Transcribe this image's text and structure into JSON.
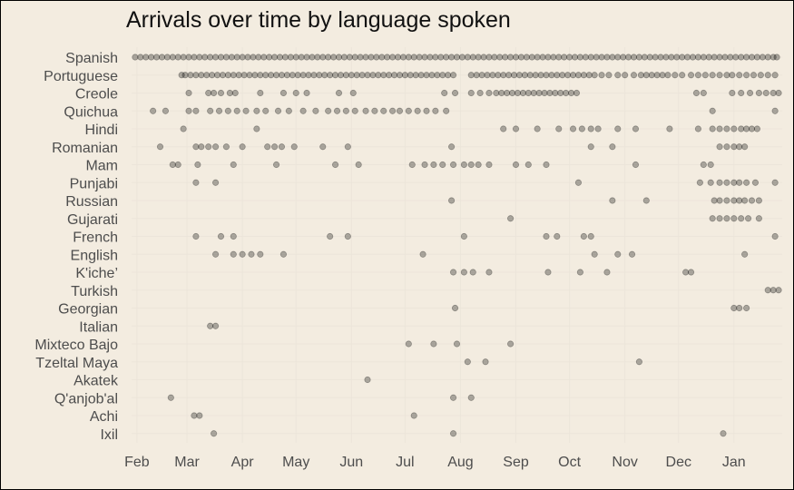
{
  "chart_data": {
    "type": "scatter",
    "title": "Arrivals over time by language spoken",
    "xlabel": "",
    "ylabel": "",
    "x_axis_type": "date",
    "xlim": [
      "2022-01-29",
      "2023-01-28"
    ],
    "x_ticks": [
      {
        "label": "Feb",
        "date": "2022-02-01"
      },
      {
        "label": "Mar",
        "date": "2022-03-01"
      },
      {
        "label": "Apr",
        "date": "2022-04-01"
      },
      {
        "label": "May",
        "date": "2022-05-01"
      },
      {
        "label": "Jun",
        "date": "2022-06-01"
      },
      {
        "label": "Jul",
        "date": "2022-07-01"
      },
      {
        "label": "Aug",
        "date": "2022-08-01"
      },
      {
        "label": "Sep",
        "date": "2022-09-01"
      },
      {
        "label": "Oct",
        "date": "2022-10-01"
      },
      {
        "label": "Nov",
        "date": "2022-11-01"
      },
      {
        "label": "Dec",
        "date": "2022-12-01"
      },
      {
        "label": "Jan",
        "date": "2023-01-01"
      }
    ],
    "categories": [
      "Spanish",
      "Portuguese",
      "Creole",
      "Quichua",
      "Hindi",
      "Romanian",
      "Mam",
      "Punjabi",
      "Russian",
      "Gujarati",
      "French",
      "English",
      "K'iche’",
      "Turkish",
      "Georgian",
      "Italian",
      "Mixteco Bajo",
      "Tzeltal Maya",
      "Akatek",
      "Q'anjob'al",
      "Achi",
      "Ixil"
    ],
    "grid": true,
    "legend": "none",
    "point_color": "#000000",
    "point_alpha": 0.3,
    "series": [
      {
        "category": "Spanish",
        "dates": [
          "2022-01-31",
          "2022-02-03",
          "2022-02-06",
          "2022-02-09",
          "2022-02-12",
          "2022-02-15",
          "2022-02-18",
          "2022-02-21",
          "2022-02-24",
          "2022-02-27",
          "2022-03-02",
          "2022-03-05",
          "2022-03-08",
          "2022-03-11",
          "2022-03-14",
          "2022-03-17",
          "2022-03-20",
          "2022-03-23",
          "2022-03-26",
          "2022-03-29",
          "2022-04-01",
          "2022-04-04",
          "2022-04-07",
          "2022-04-10",
          "2022-04-13",
          "2022-04-16",
          "2022-04-19",
          "2022-04-22",
          "2022-04-25",
          "2022-04-28",
          "2022-05-01",
          "2022-05-04",
          "2022-05-07",
          "2022-05-10",
          "2022-05-13",
          "2022-05-16",
          "2022-05-19",
          "2022-05-22",
          "2022-05-25",
          "2022-05-28",
          "2022-05-31",
          "2022-06-03",
          "2022-06-06",
          "2022-06-09",
          "2022-06-12",
          "2022-06-15",
          "2022-06-18",
          "2022-06-21",
          "2022-06-24",
          "2022-06-27",
          "2022-06-30",
          "2022-07-03",
          "2022-07-06",
          "2022-07-09",
          "2022-07-12",
          "2022-07-15",
          "2022-07-18",
          "2022-07-21",
          "2022-07-24",
          "2022-07-27",
          "2022-07-30",
          "2022-08-02",
          "2022-08-05",
          "2022-08-08",
          "2022-08-11",
          "2022-08-14",
          "2022-08-17",
          "2022-08-20",
          "2022-08-23",
          "2022-08-26",
          "2022-08-29",
          "2022-09-01",
          "2022-09-04",
          "2022-09-07",
          "2022-09-10",
          "2022-09-13",
          "2022-09-16",
          "2022-09-19",
          "2022-09-22",
          "2022-09-25",
          "2022-09-28",
          "2022-10-01",
          "2022-10-04",
          "2022-10-07",
          "2022-10-10",
          "2022-10-13",
          "2022-10-16",
          "2022-10-19",
          "2022-10-22",
          "2022-10-25",
          "2022-10-28",
          "2022-10-31",
          "2022-11-03",
          "2022-11-06",
          "2022-11-09",
          "2022-11-12",
          "2022-11-15",
          "2022-11-18",
          "2022-11-21",
          "2022-11-24",
          "2022-11-27",
          "2022-11-30",
          "2022-12-03",
          "2022-12-06",
          "2022-12-09",
          "2022-12-12",
          "2022-12-15",
          "2022-12-18",
          "2022-12-21",
          "2022-12-24",
          "2022-12-27",
          "2022-12-30",
          "2023-01-02",
          "2023-01-05",
          "2023-01-08",
          "2023-01-11",
          "2023-01-14",
          "2023-01-17",
          "2023-01-20",
          "2023-01-23",
          "2023-01-25"
        ]
      },
      {
        "category": "Portuguese",
        "dates": [
          "2022-02-26",
          "2022-02-28",
          "2022-03-03",
          "2022-03-06",
          "2022-03-09",
          "2022-03-12",
          "2022-03-15",
          "2022-03-18",
          "2022-03-21",
          "2022-03-24",
          "2022-03-27",
          "2022-03-30",
          "2022-04-02",
          "2022-04-05",
          "2022-04-08",
          "2022-04-11",
          "2022-04-14",
          "2022-04-17",
          "2022-04-20",
          "2022-04-23",
          "2022-04-26",
          "2022-04-29",
          "2022-05-02",
          "2022-05-05",
          "2022-05-08",
          "2022-05-11",
          "2022-05-14",
          "2022-05-17",
          "2022-05-20",
          "2022-05-23",
          "2022-05-26",
          "2022-05-29",
          "2022-06-01",
          "2022-06-04",
          "2022-06-07",
          "2022-06-10",
          "2022-06-13",
          "2022-06-16",
          "2022-06-19",
          "2022-06-22",
          "2022-06-25",
          "2022-06-28",
          "2022-07-01",
          "2022-07-04",
          "2022-07-07",
          "2022-07-10",
          "2022-07-13",
          "2022-07-16",
          "2022-07-19",
          "2022-07-22",
          "2022-07-25",
          "2022-07-28",
          "2022-08-07",
          "2022-08-10",
          "2022-08-13",
          "2022-08-16",
          "2022-08-19",
          "2022-08-22",
          "2022-08-25",
          "2022-08-28",
          "2022-08-31",
          "2022-09-03",
          "2022-09-06",
          "2022-09-09",
          "2022-09-12",
          "2022-09-15",
          "2022-09-18",
          "2022-09-21",
          "2022-09-24",
          "2022-09-27",
          "2022-09-30",
          "2022-10-03",
          "2022-10-06",
          "2022-10-09",
          "2022-10-12",
          "2022-10-15",
          "2022-10-19",
          "2022-10-23",
          "2022-10-28",
          "2022-11-01",
          "2022-11-06",
          "2022-11-10",
          "2022-11-13",
          "2022-11-16",
          "2022-11-19",
          "2022-11-22",
          "2022-11-25",
          "2022-11-29",
          "2022-12-03",
          "2022-12-08",
          "2022-12-12",
          "2022-12-16",
          "2022-12-20",
          "2022-12-24",
          "2022-12-28",
          "2022-12-31",
          "2023-01-04",
          "2023-01-08",
          "2023-01-12",
          "2023-01-16",
          "2023-01-20",
          "2023-01-24"
        ]
      },
      {
        "category": "Creole",
        "dates": [
          "2022-03-02",
          "2022-03-13",
          "2022-03-16",
          "2022-03-20",
          "2022-03-25",
          "2022-03-28",
          "2022-04-11",
          "2022-04-24",
          "2022-05-01",
          "2022-05-07",
          "2022-05-25",
          "2022-06-02",
          "2022-07-23",
          "2022-07-29",
          "2022-08-07",
          "2022-08-12",
          "2022-08-17",
          "2022-08-21",
          "2022-08-24",
          "2022-08-27",
          "2022-08-30",
          "2022-09-02",
          "2022-09-05",
          "2022-09-08",
          "2022-09-11",
          "2022-09-14",
          "2022-09-17",
          "2022-09-20",
          "2022-09-23",
          "2022-09-26",
          "2022-09-29",
          "2022-10-02",
          "2022-10-05",
          "2022-12-11",
          "2022-12-15",
          "2022-12-31",
          "2023-01-05",
          "2023-01-10",
          "2023-01-15",
          "2023-01-19",
          "2023-01-23",
          "2023-01-26"
        ]
      },
      {
        "category": "Quichua",
        "dates": [
          "2022-02-10",
          "2022-02-17",
          "2022-03-02",
          "2022-03-06",
          "2022-03-14",
          "2022-03-19",
          "2022-03-24",
          "2022-03-29",
          "2022-04-03",
          "2022-04-09",
          "2022-04-14",
          "2022-04-21",
          "2022-04-27",
          "2022-05-05",
          "2022-05-12",
          "2022-05-19",
          "2022-05-24",
          "2022-05-29",
          "2022-06-03",
          "2022-06-09",
          "2022-06-14",
          "2022-06-19",
          "2022-06-24",
          "2022-06-28",
          "2022-07-03",
          "2022-07-08",
          "2022-07-13",
          "2022-07-18",
          "2022-07-24",
          "2022-12-20",
          "2023-01-24"
        ]
      },
      {
        "category": "Hindi",
        "dates": [
          "2022-02-27",
          "2022-04-09",
          "2022-08-25",
          "2022-09-01",
          "2022-09-13",
          "2022-09-25",
          "2022-10-03",
          "2022-10-08",
          "2022-10-13",
          "2022-10-17",
          "2022-10-28",
          "2022-11-07",
          "2022-11-26",
          "2022-12-12",
          "2022-12-20",
          "2022-12-24",
          "2022-12-28",
          "2023-01-01",
          "2023-01-05",
          "2023-01-08",
          "2023-01-11",
          "2023-01-14"
        ]
      },
      {
        "category": "Romanian",
        "dates": [
          "2022-02-14",
          "2022-03-06",
          "2022-03-09",
          "2022-03-13",
          "2022-03-17",
          "2022-03-23",
          "2022-04-01",
          "2022-04-15",
          "2022-04-19",
          "2022-04-23",
          "2022-04-30",
          "2022-05-16",
          "2022-05-30",
          "2022-07-27",
          "2022-10-13",
          "2022-10-25",
          "2022-12-24",
          "2022-12-28",
          "2023-01-01",
          "2023-01-04",
          "2023-01-07"
        ]
      },
      {
        "category": "Mam",
        "dates": [
          "2022-02-21",
          "2022-02-24",
          "2022-03-07",
          "2022-03-27",
          "2022-04-20",
          "2022-05-23",
          "2022-06-05",
          "2022-07-05",
          "2022-07-12",
          "2022-07-17",
          "2022-07-22",
          "2022-07-28",
          "2022-08-03",
          "2022-08-07",
          "2022-08-11",
          "2022-08-17",
          "2022-09-01",
          "2022-09-08",
          "2022-09-18",
          "2022-11-07",
          "2022-12-15",
          "2022-12-19"
        ]
      },
      {
        "category": "Punjabi",
        "dates": [
          "2022-03-06",
          "2022-03-17",
          "2022-10-06",
          "2022-12-13",
          "2022-12-19",
          "2022-12-24",
          "2022-12-28",
          "2023-01-01",
          "2023-01-04",
          "2023-01-08",
          "2023-01-13",
          "2023-01-24"
        ]
      },
      {
        "category": "Russian",
        "dates": [
          "2022-07-27",
          "2022-10-25",
          "2022-11-13",
          "2022-12-21",
          "2022-12-24",
          "2022-12-28",
          "2023-01-01",
          "2023-01-04",
          "2023-01-07",
          "2023-01-11",
          "2023-01-15"
        ]
      },
      {
        "category": "Gujarati",
        "dates": [
          "2022-08-29",
          "2022-12-20",
          "2022-12-24",
          "2022-12-28",
          "2023-01-01",
          "2023-01-05",
          "2023-01-09",
          "2023-01-15"
        ]
      },
      {
        "category": "French",
        "dates": [
          "2022-03-06",
          "2022-03-20",
          "2022-03-27",
          "2022-05-20",
          "2022-05-30",
          "2022-08-03",
          "2022-09-18",
          "2022-09-24",
          "2022-10-09",
          "2022-10-13",
          "2023-01-24"
        ]
      },
      {
        "category": "English",
        "dates": [
          "2022-03-17",
          "2022-03-27",
          "2022-04-01",
          "2022-04-06",
          "2022-04-11",
          "2022-04-24",
          "2022-07-11",
          "2022-10-15",
          "2022-10-28",
          "2022-11-05",
          "2023-01-07"
        ]
      },
      {
        "category": "K'iche’",
        "dates": [
          "2022-07-28",
          "2022-08-03",
          "2022-08-08",
          "2022-08-17",
          "2022-09-19",
          "2022-10-07",
          "2022-10-22",
          "2022-12-05",
          "2022-12-08"
        ]
      },
      {
        "category": "Turkish",
        "dates": [
          "2023-01-20",
          "2023-01-23",
          "2023-01-26"
        ]
      },
      {
        "category": "Georgian",
        "dates": [
          "2022-07-29",
          "2023-01-01",
          "2023-01-04",
          "2023-01-08"
        ]
      },
      {
        "category": "Italian",
        "dates": [
          "2022-03-14",
          "2022-03-17"
        ]
      },
      {
        "category": "Mixteco Bajo",
        "dates": [
          "2022-07-03",
          "2022-07-17",
          "2022-07-30",
          "2022-08-29"
        ]
      },
      {
        "category": "Tzeltal Maya",
        "dates": [
          "2022-08-05",
          "2022-08-15",
          "2022-11-09"
        ]
      },
      {
        "category": "Akatek",
        "dates": [
          "2022-06-10"
        ]
      },
      {
        "category": "Q'anjob'al",
        "dates": [
          "2022-02-20",
          "2022-07-28",
          "2022-08-07"
        ]
      },
      {
        "category": "Achi",
        "dates": [
          "2022-03-05",
          "2022-03-08",
          "2022-07-06"
        ]
      },
      {
        "category": "Ixil",
        "dates": [
          "2022-03-16",
          "2022-07-28",
          "2022-12-26"
        ]
      }
    ]
  }
}
